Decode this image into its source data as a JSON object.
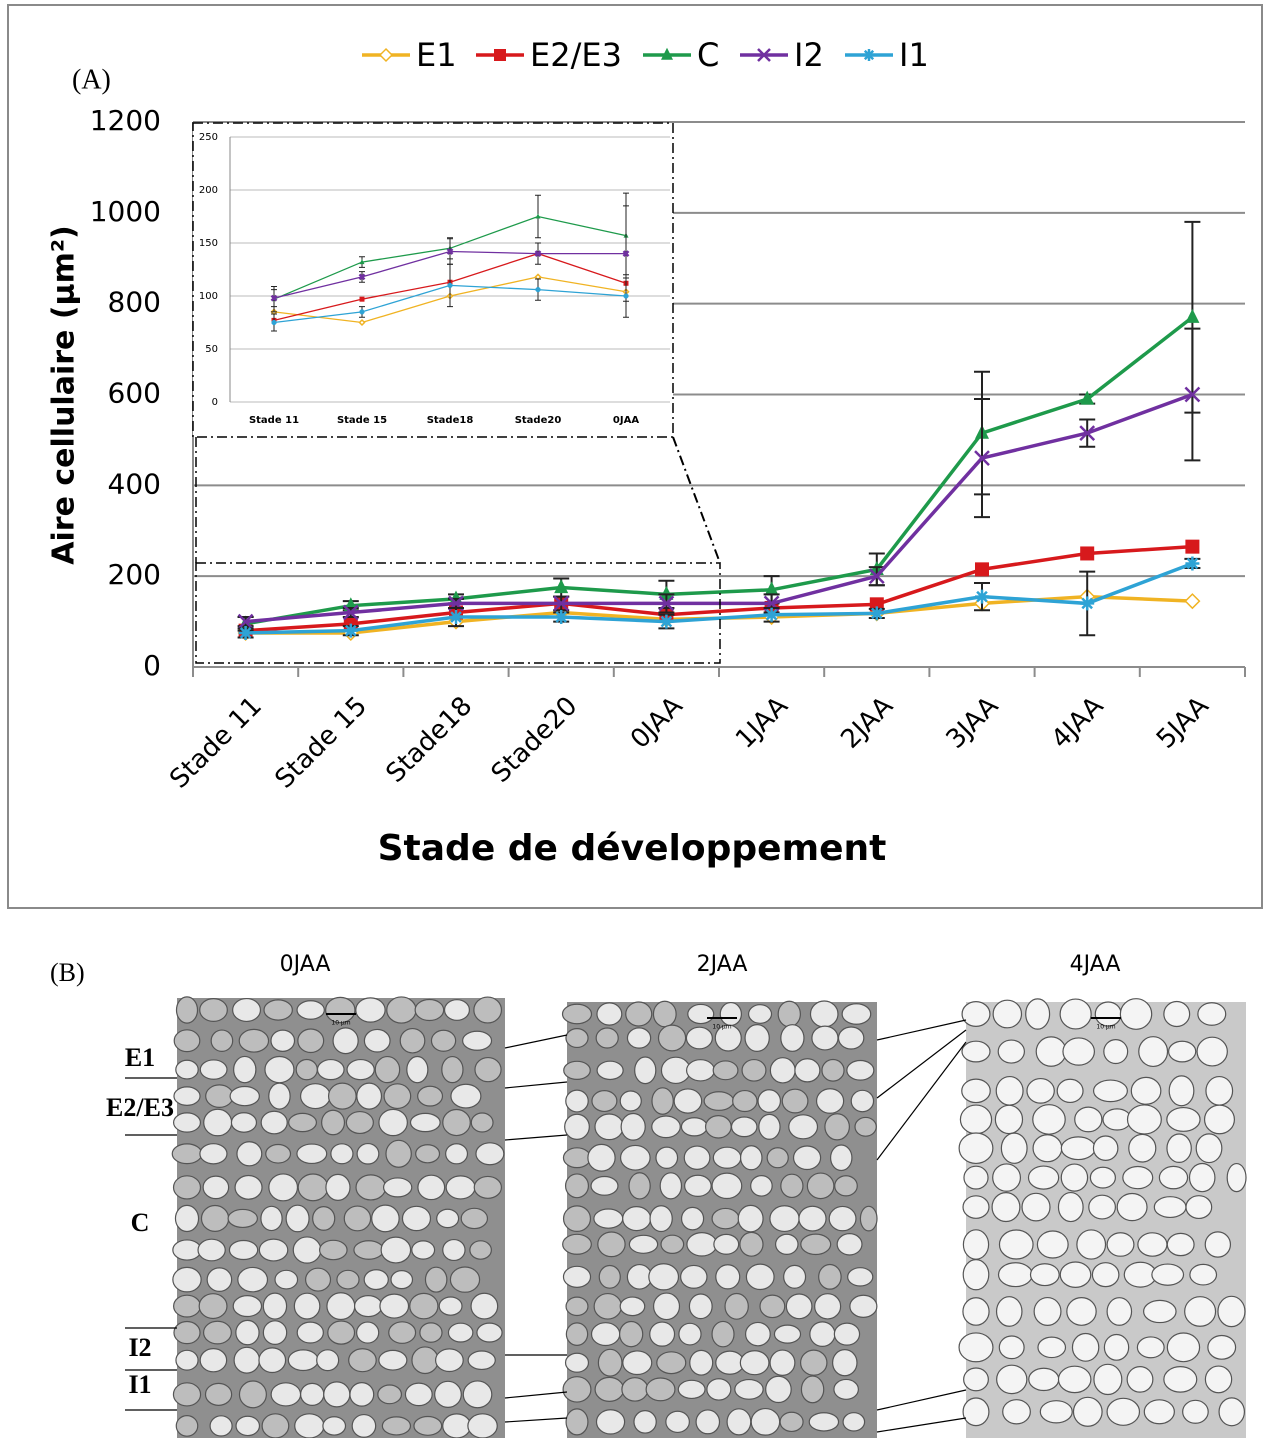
{
  "chart_data": [
    {
      "type": "line",
      "y_label": "Aire cellulaire (µm²)",
      "x_label": "Stade de développement",
      "categories": [
        "Stade 11",
        "Stade 15",
        "Stade18",
        "Stade20",
        "0JAA",
        "1JAA",
        "2JAA",
        "3JAA",
        "4JAA",
        "5JAA"
      ],
      "ylim": [
        0,
        1200
      ],
      "yticks": [
        0,
        200,
        400,
        600,
        800,
        1000,
        1200
      ],
      "grid": true,
      "legend": "top",
      "series": [
        {
          "name": "E1",
          "color": "#f0b323",
          "marker": "diamond",
          "values": [
            75,
            75,
            100,
            120,
            105,
            110,
            118,
            140,
            155,
            145
          ]
        },
        {
          "name": "E2/E3",
          "color": "#d7191c",
          "marker": "square",
          "values": [
            80,
            95,
            120,
            140,
            115,
            130,
            138,
            215,
            250,
            265
          ]
        },
        {
          "name": "C",
          "color": "#1e9a4b",
          "marker": "triangle",
          "values": [
            95,
            135,
            150,
            175,
            160,
            170,
            215,
            515,
            590,
            770
          ],
          "errors": [
            15,
            10,
            10,
            20,
            30,
            30,
            35,
            135,
            10,
            210
          ]
        },
        {
          "name": "I2",
          "color": "#7030a0",
          "marker": "x",
          "values": [
            100,
            120,
            140,
            140,
            140,
            140,
            200,
            460,
            515,
            600
          ],
          "errors": [
            10,
            10,
            10,
            15,
            20,
            20,
            20,
            130,
            30,
            145
          ]
        },
        {
          "name": "I1",
          "color": "#2ea3d5",
          "marker": "asterisk",
          "values": [
            75,
            80,
            110,
            110,
            100,
            115,
            118,
            155,
            140,
            228
          ],
          "errors": [
            10,
            10,
            20,
            10,
            15,
            15,
            10,
            30,
            70,
            10
          ]
        }
      ]
    },
    {
      "type": "line",
      "categories": [
        "Stade 11",
        "Stade 15",
        "Stade18",
        "Stade20",
        "0JAA"
      ],
      "ylim": [
        0,
        250
      ],
      "yticks": [
        0,
        50,
        100,
        150,
        200,
        250
      ],
      "grid": true,
      "series": [
        {
          "color": "#f0b323",
          "marker": "diamond",
          "values": [
            85,
            75,
            100,
            118,
            104
          ]
        },
        {
          "color": "#d7191c",
          "marker": "square",
          "values": [
            77,
            97,
            113,
            140,
            112
          ]
        },
        {
          "color": "#1e9a4b",
          "marker": "triangle",
          "values": [
            97,
            132,
            145,
            175,
            157
          ],
          "errors": [
            12,
            5,
            10,
            20,
            40
          ]
        },
        {
          "color": "#7030a0",
          "marker": "x",
          "values": [
            98,
            118,
            142,
            140,
            140
          ],
          "errors": [
            8,
            5,
            12,
            10,
            45
          ]
        },
        {
          "color": "#2ea3d5",
          "marker": "asterisk",
          "values": [
            75,
            85,
            110,
            106,
            100
          ],
          "errors": [
            8,
            5,
            20,
            10,
            20
          ]
        }
      ]
    }
  ],
  "panel_a_label": "(A)",
  "panel_b": {
    "label": "(B)",
    "scale": "10 µm",
    "panels": [
      "0JAA",
      "2JAA",
      "4JAA"
    ],
    "layers": [
      "E1",
      "E2/E3",
      "C",
      "I2",
      "I1"
    ]
  }
}
